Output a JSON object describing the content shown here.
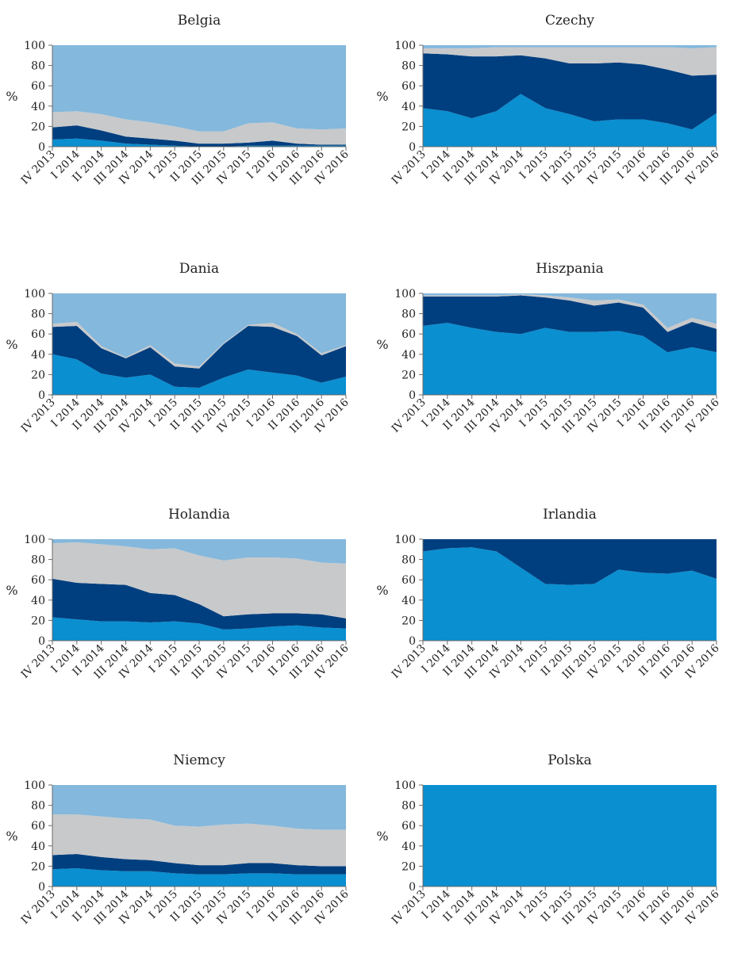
{
  "chart_data": [
    {
      "type": "area",
      "title": "Belgia",
      "ylabel": "%",
      "ylim": [
        0,
        100
      ],
      "yticks": [
        0,
        20,
        40,
        60,
        80,
        100
      ],
      "categories": [
        "IV 2013",
        "I 2014",
        "II 2014",
        "III 2014",
        "IV 2014",
        "I 2015",
        "II 2015",
        "III 2015",
        "IV 2015",
        "I 2016",
        "II 2016",
        "III 2016",
        "IV 2016"
      ],
      "series": [
        {
          "values": [
            7,
            8,
            6,
            3,
            2,
            1,
            0,
            0,
            1,
            1,
            1,
            1,
            1
          ]
        },
        {
          "values": [
            12,
            13,
            10,
            7,
            6,
            5,
            3,
            3,
            3,
            5,
            2,
            1,
            1
          ]
        },
        {
          "values": [
            15,
            14,
            16,
            17,
            16,
            14,
            12,
            12,
            19,
            18,
            15,
            15,
            16
          ]
        },
        {
          "values": [
            66,
            65,
            68,
            73,
            76,
            80,
            85,
            85,
            77,
            76,
            82,
            83,
            82
          ]
        }
      ]
    },
    {
      "type": "area",
      "title": "Czechy",
      "ylabel": "%",
      "ylim": [
        0,
        100
      ],
      "yticks": [
        0,
        20,
        40,
        60,
        80,
        100
      ],
      "categories": [
        "IV 2013",
        "I 2014",
        "II 2014",
        "III 2014",
        "IV 2014",
        "I 2015",
        "II 2015",
        "III 2015",
        "IV 2015",
        "I 2016",
        "II 2016",
        "III 2016",
        "IV 2016"
      ],
      "series": [
        {
          "values": [
            38,
            35,
            28,
            35,
            52,
            38,
            32,
            25,
            27,
            27,
            23,
            17,
            33
          ]
        },
        {
          "values": [
            54,
            56,
            61,
            54,
            38,
            49,
            50,
            57,
            56,
            54,
            53,
            53,
            38
          ]
        },
        {
          "values": [
            5,
            6,
            8,
            9,
            8,
            11,
            16,
            16,
            15,
            17,
            22,
            27,
            27
          ]
        },
        {
          "values": [
            3,
            3,
            3,
            2,
            2,
            2,
            2,
            2,
            2,
            2,
            2,
            3,
            2
          ]
        }
      ]
    },
    {
      "type": "area",
      "title": "Dania",
      "ylabel": "%",
      "ylim": [
        0,
        100
      ],
      "yticks": [
        0,
        20,
        40,
        60,
        80,
        100
      ],
      "categories": [
        "IV 2013",
        "I 2014",
        "II 2014",
        "III 2014",
        "IV 2014",
        "I 2015",
        "II 2015",
        "III 2015",
        "IV 2015",
        "I 2016",
        "II 2016",
        "III 2016",
        "IV 2016"
      ],
      "series": [
        {
          "values": [
            40,
            35,
            21,
            17,
            20,
            8,
            7,
            17,
            25,
            22,
            19,
            12,
            18
          ]
        },
        {
          "values": [
            27,
            33,
            25,
            19,
            27,
            20,
            19,
            33,
            43,
            45,
            39,
            27,
            30
          ]
        },
        {
          "values": [
            3,
            4,
            2,
            1,
            2,
            3,
            2,
            1,
            1,
            4,
            2,
            2,
            1
          ]
        },
        {
          "values": [
            30,
            28,
            52,
            63,
            51,
            69,
            72,
            49,
            31,
            29,
            40,
            59,
            51
          ]
        }
      ]
    },
    {
      "type": "area",
      "title": "Hiszpania",
      "ylabel": "%",
      "ylim": [
        0,
        100
      ],
      "yticks": [
        0,
        20,
        40,
        60,
        80,
        100
      ],
      "categories": [
        "IV 2013",
        "I 2014",
        "II 2014",
        "III 2014",
        "IV 2014",
        "I 2015",
        "II 2015",
        "III 2015",
        "IV 2015",
        "I 2016",
        "II 2016",
        "III 2016",
        "IV 2016"
      ],
      "series": [
        {
          "values": [
            68,
            71,
            66,
            62,
            60,
            66,
            62,
            62,
            63,
            58,
            42,
            47,
            42
          ]
        },
        {
          "values": [
            29,
            26,
            31,
            35,
            38,
            30,
            31,
            26,
            28,
            28,
            20,
            25,
            23
          ]
        },
        {
          "values": [
            1,
            1,
            1,
            1,
            1,
            2,
            3,
            5,
            3,
            3,
            4,
            4,
            5
          ]
        },
        {
          "values": [
            2,
            2,
            2,
            2,
            1,
            2,
            4,
            7,
            6,
            11,
            34,
            24,
            30
          ]
        }
      ]
    },
    {
      "type": "area",
      "title": "Holandia",
      "ylabel": "%",
      "ylim": [
        0,
        100
      ],
      "yticks": [
        0,
        20,
        40,
        60,
        80,
        100
      ],
      "categories": [
        "IV 2013",
        "I 2014",
        "II 2014",
        "III 2014",
        "IV 2014",
        "I 2015",
        "II 2015",
        "III 2015",
        "IV 2015",
        "I 2016",
        "II 2016",
        "III 2016",
        "IV 2016"
      ],
      "series": [
        {
          "values": [
            23,
            21,
            19,
            19,
            18,
            19,
            17,
            11,
            12,
            14,
            15,
            13,
            12
          ]
        },
        {
          "values": [
            38,
            36,
            37,
            36,
            29,
            26,
            19,
            13,
            14,
            13,
            12,
            13,
            10
          ]
        },
        {
          "values": [
            35,
            40,
            39,
            38,
            43,
            46,
            48,
            55,
            56,
            55,
            54,
            51,
            54
          ]
        },
        {
          "values": [
            4,
            3,
            5,
            7,
            10,
            9,
            16,
            21,
            18,
            18,
            19,
            23,
            24
          ]
        }
      ]
    },
    {
      "type": "area",
      "title": "Irlandia",
      "ylabel": "%",
      "ylim": [
        0,
        100
      ],
      "yticks": [
        0,
        20,
        40,
        60,
        80,
        100
      ],
      "categories": [
        "IV 2013",
        "I 2014",
        "II 2014",
        "III 2014",
        "IV 2014",
        "I 2015",
        "II 2015",
        "III 2015",
        "IV 2015",
        "I 2016",
        "II 2016",
        "III 2016",
        "IV 2016"
      ],
      "series": [
        {
          "values": [
            88,
            91,
            92,
            88,
            72,
            56,
            55,
            56,
            70,
            67,
            66,
            69,
            61
          ]
        },
        {
          "values": [
            12,
            9,
            8,
            12,
            28,
            44,
            45,
            44,
            30,
            33,
            34,
            31,
            39
          ]
        },
        {
          "values": [
            0,
            0,
            0,
            0,
            0,
            0,
            0,
            0,
            0,
            0,
            0,
            0,
            0
          ]
        },
        {
          "values": [
            0,
            0,
            0,
            0,
            0,
            0,
            0,
            0,
            0,
            0,
            0,
            0,
            0
          ]
        }
      ]
    },
    {
      "type": "area",
      "title": "Niemcy",
      "ylabel": "%",
      "ylim": [
        0,
        100
      ],
      "yticks": [
        0,
        20,
        40,
        60,
        80,
        100
      ],
      "categories": [
        "IV 2013",
        "I 2014",
        "II 2014",
        "III 2014",
        "IV 2014",
        "I 2015",
        "II 2015",
        "III 2015",
        "IV 2015",
        "I 2016",
        "II 2016",
        "III 2016",
        "IV 2016"
      ],
      "series": [
        {
          "values": [
            17,
            18,
            16,
            15,
            15,
            13,
            12,
            12,
            13,
            13,
            12,
            12,
            12
          ]
        },
        {
          "values": [
            14,
            14,
            13,
            12,
            11,
            10,
            9,
            9,
            10,
            10,
            9,
            8,
            8
          ]
        },
        {
          "values": [
            40,
            39,
            40,
            40,
            40,
            37,
            38,
            40,
            39,
            37,
            36,
            36,
            36
          ]
        },
        {
          "values": [
            29,
            29,
            31,
            33,
            34,
            40,
            41,
            39,
            38,
            40,
            43,
            44,
            44
          ]
        }
      ]
    },
    {
      "type": "area",
      "title": "Polska",
      "ylabel": "%",
      "ylim": [
        0,
        100
      ],
      "yticks": [
        0,
        20,
        40,
        60,
        80,
        100
      ],
      "categories": [
        "IV 2013",
        "I 2014",
        "II 2014",
        "III 2014",
        "IV 2014",
        "I 2015",
        "II 2015",
        "III 2015",
        "IV 2015",
        "I 2016",
        "II 2016",
        "III 2016",
        "IV 2016"
      ],
      "series": [
        {
          "values": [
            100,
            100,
            100,
            100,
            100,
            100,
            100,
            100,
            100,
            100,
            100,
            100,
            100
          ]
        },
        {
          "values": [
            0,
            0,
            0,
            0,
            0,
            0,
            0,
            0,
            0,
            0,
            0,
            0,
            0
          ]
        },
        {
          "values": [
            0,
            0,
            0,
            0,
            0,
            0,
            0,
            0,
            0,
            0,
            0,
            0,
            0
          ]
        },
        {
          "values": [
            0,
            0,
            0,
            0,
            0,
            0,
            0,
            0,
            0,
            0,
            0,
            0,
            0
          ]
        }
      ]
    }
  ],
  "colors": {
    "series": [
      "#0a8fd0",
      "#003f7f",
      "#c8c9cb",
      "#84b8dc"
    ],
    "axis": "#6b6b6b",
    "text": "#222222"
  }
}
